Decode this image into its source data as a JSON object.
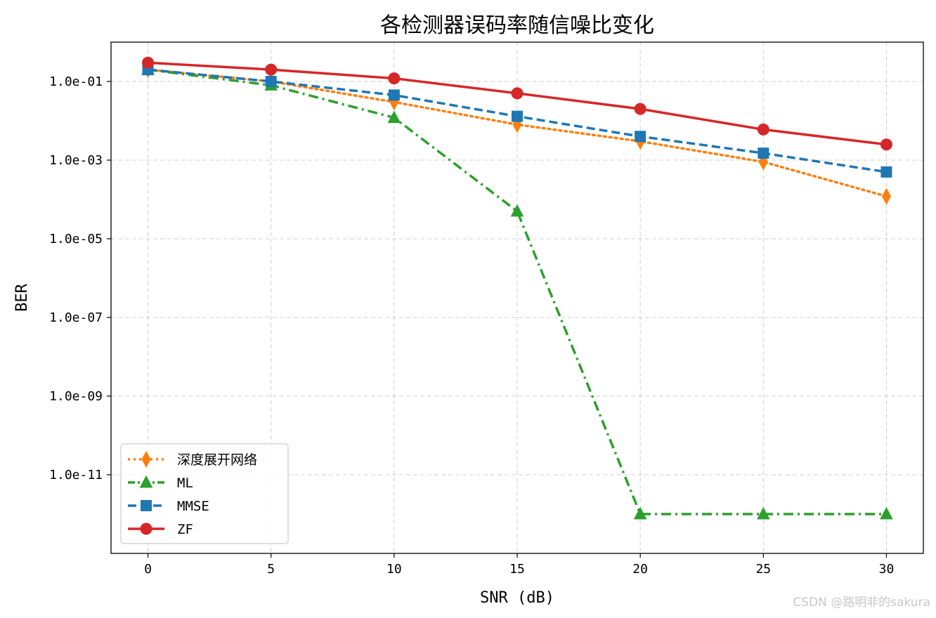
{
  "chart_data": {
    "type": "line",
    "title": "各检测器误码率随信噪比变化",
    "xlabel": "SNR (dB)",
    "ylabel": "BER",
    "yscale": "log",
    "x": [
      0,
      5,
      10,
      15,
      20,
      25,
      30
    ],
    "xlim": [
      -1.5,
      31.5
    ],
    "ylim": [
      1e-13,
      1.0
    ],
    "xticks": [
      0,
      5,
      10,
      15,
      20,
      25,
      30
    ],
    "xtick_labels": [
      "0",
      "5",
      "10",
      "15",
      "20",
      "25",
      "30"
    ],
    "yticks": [
      1e-11,
      1e-09,
      1e-07,
      1e-05,
      0.001,
      0.1
    ],
    "ytick_labels": [
      "1.0e-11",
      "1.0e-09",
      "1.0e-07",
      "1.0e-05",
      "1.0e-03",
      "1.0e-01"
    ],
    "grid": true,
    "legend_position": "lower-left",
    "series": [
      {
        "name": "深度展开网络",
        "values": [
          0.2,
          0.1,
          0.03,
          0.008,
          0.003,
          0.0009,
          0.00012
        ],
        "color": "#ff7f0e",
        "marker": "thin-diamond",
        "line_style": "dotted"
      },
      {
        "name": "ML",
        "values": [
          0.2,
          0.08,
          0.012,
          5e-05,
          1e-12,
          1e-12,
          1e-12
        ],
        "color": "#2ca02c",
        "marker": "triangle",
        "line_style": "dash-dot"
      },
      {
        "name": "MMSE",
        "values": [
          0.2,
          0.1,
          0.045,
          0.013,
          0.004,
          0.0015,
          0.0005
        ],
        "color": "#1f77b4",
        "marker": "square",
        "line_style": "dashed"
      },
      {
        "name": "ZF",
        "values": [
          0.3,
          0.2,
          0.12,
          0.05,
          0.02,
          0.006,
          0.0025
        ],
        "color": "#d62728",
        "marker": "circle",
        "line_style": "solid"
      }
    ]
  },
  "watermark": "CSDN @路明非的sakura"
}
